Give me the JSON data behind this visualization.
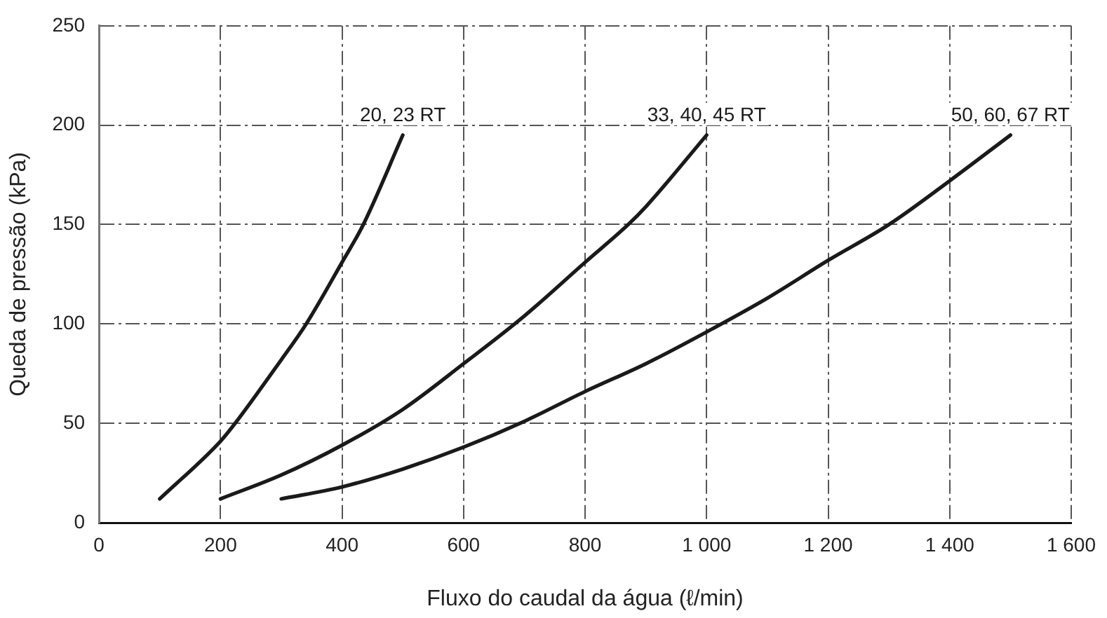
{
  "chart_data": {
    "type": "line",
    "xlabel": "Fluxo do caudal da água (ℓ/min)",
    "ylabel": "Queda de pressão (kPa)",
    "xlim": [
      0,
      1600
    ],
    "xticks": [
      0,
      {
        "value": 200,
        "label": "200"
      },
      {
        "value": 400,
        "label": "400"
      },
      {
        "value": 600,
        "label": "600"
      },
      {
        "value": 800,
        "label": "800"
      },
      {
        "value": 1000,
        "label": "1 000"
      },
      {
        "value": 1200,
        "label": "1 200"
      },
      {
        "value": 1400,
        "label": "1 400"
      },
      {
        "value": 1600,
        "label": "1 600"
      }
    ],
    "ylim": [
      0,
      250
    ],
    "yticks": [
      0,
      50,
      100,
      150,
      200,
      250
    ],
    "grid": true,
    "marker": "none",
    "line_style": "solid",
    "series": [
      {
        "name": "20, 23 RT",
        "color": "#1a1a1a",
        "x": [
          100,
          200,
          224,
          300,
          341,
          400,
          435,
          500
        ],
        "values": [
          12,
          41,
          50,
          82,
          100,
          131,
          150,
          195
        ]
      },
      {
        "name": "33, 40, 45 RT",
        "color": "#1a1a1a",
        "x": [
          200,
          300,
          400,
          500,
          600,
          700,
          800,
          871,
          900,
          1000
        ],
        "values": [
          12,
          24,
          39,
          57,
          80,
          104,
          131,
          150,
          159,
          195
        ]
      },
      {
        "name": "50, 60, 67 RT",
        "color": "#1a1a1a",
        "x": [
          300,
          400,
          500,
          600,
          700,
          800,
          900,
          1000,
          1100,
          1200,
          1300,
          1400,
          1500
        ],
        "values": [
          12,
          18,
          27,
          38,
          51,
          66,
          80,
          96,
          113,
          132,
          150,
          172,
          195
        ]
      }
    ]
  }
}
